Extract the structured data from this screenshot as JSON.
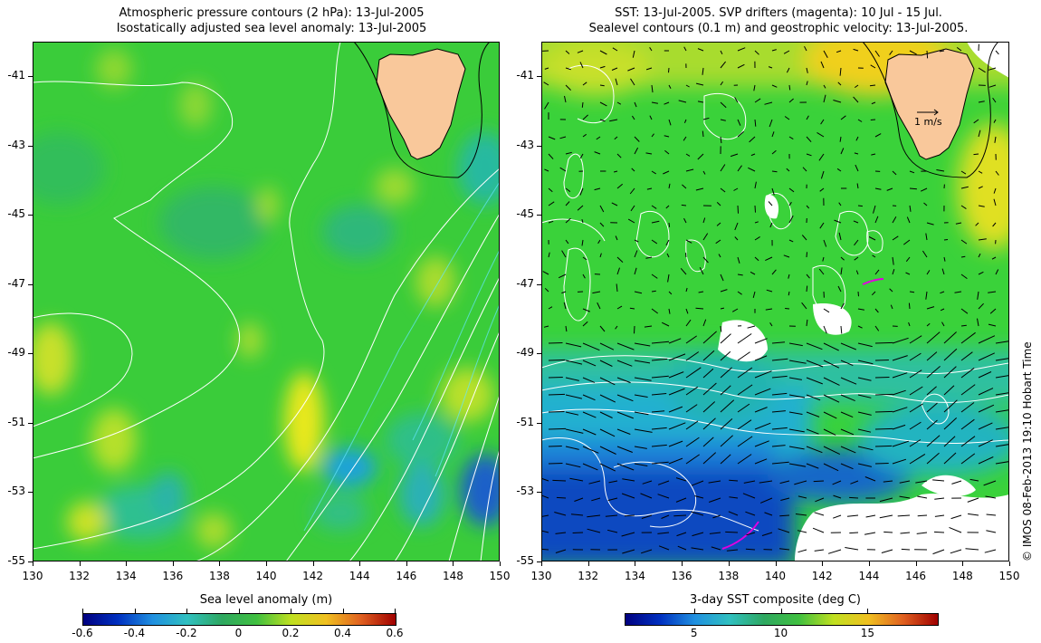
{
  "left_panel": {
    "title_line1": "Atmospheric pressure contours (2 hPa): 13-Jul-2005",
    "title_line2": "Isostatically adjusted sea level anomaly: 13-Jul-2005",
    "colorbar": {
      "title": "Sea level anomaly (m)",
      "min": -0.6,
      "max": 0.6,
      "ticks": [
        "-0.6",
        "-0.4",
        "-0.2",
        "0",
        "0.2",
        "0.4",
        "0.6"
      ]
    }
  },
  "right_panel": {
    "title_line1": "SST: 13-Jul-2005. SVP drifters (magenta): 10 Jul - 15 Jul.",
    "title_line2": "Sealevel contours (0.1 m) and geostrophic velocity: 13-Jul-2005.",
    "velocity_scale_label": "1 m/s",
    "colorbar": {
      "title": "3-day SST composite (deg C)",
      "min": 1,
      "max": 19,
      "ticks": [
        "5",
        "10",
        "15"
      ]
    }
  },
  "map": {
    "lon_range": [
      130,
      150
    ],
    "lat_range": [
      -55,
      -40
    ],
    "x_ticks": [
      "130",
      "132",
      "134",
      "136",
      "138",
      "140",
      "142",
      "144",
      "146",
      "148",
      "150"
    ],
    "y_ticks": [
      "-41",
      "-43",
      "-45",
      "-47",
      "-49",
      "-51",
      "-53",
      "-55"
    ]
  },
  "copyright": "© IMOS 08-Feb-2013 19:10 Hobart Time",
  "colors": {
    "land": "#f9c89b",
    "background_sea": "#3ad23a",
    "contour": "#ffffff",
    "drifter": "#e000e0"
  }
}
